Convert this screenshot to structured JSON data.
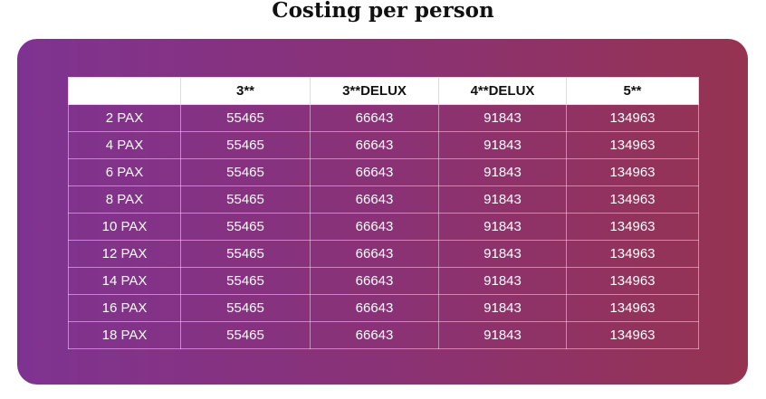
{
  "header": {
    "title": "Costing per person"
  },
  "table": {
    "columns": [
      "3**",
      "3**DELUX",
      "4**DELUX",
      "5**"
    ],
    "rows": [
      [
        "2 PAX",
        55465,
        66643,
        91843,
        134963
      ],
      [
        "4 PAX",
        55465,
        66643,
        91843,
        134963
      ],
      [
        "6 PAX",
        55465,
        66643,
        91843,
        134963
      ],
      [
        "8 PAX",
        55465,
        66643,
        91843,
        134963
      ],
      [
        "10 PAX",
        55465,
        66643,
        91843,
        134963
      ],
      [
        "12 PAX",
        55465,
        66643,
        91843,
        134963
      ],
      [
        "14 PAX",
        55465,
        66643,
        91843,
        134963
      ],
      [
        "16 PAX",
        55465,
        66643,
        91843,
        134963
      ],
      [
        "18 PAX",
        55465,
        66643,
        91843,
        134963
      ]
    ]
  }
}
